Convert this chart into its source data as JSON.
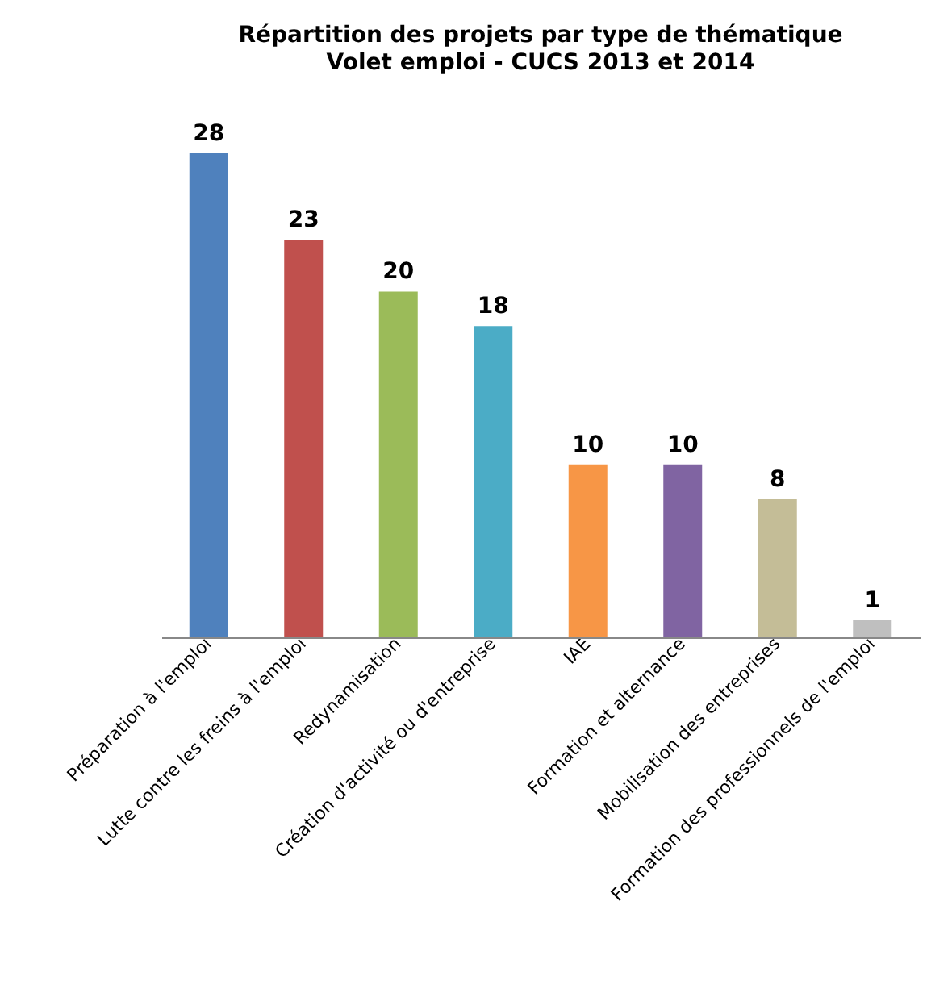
{
  "chart_data": {
    "type": "bar",
    "title": "Répartition des projets par type de thématique",
    "subtitle": "Volet emploi - CUCS 2013 et 2014",
    "categories": [
      "Préparation à l'emploi",
      "Lutte contre les freins à l'emploi",
      "Redynamisation",
      "Création d'activité ou d'entreprise",
      "IAE",
      "Formation et alternance",
      "Mobilisation des entreprises",
      "Formation des professionnels de l'emploi"
    ],
    "values": [
      28,
      23,
      20,
      18,
      10,
      10,
      8,
      1
    ],
    "colors": [
      "#4f81bd",
      "#c0504d",
      "#9bbb59",
      "#4bacc6",
      "#f79646",
      "#8064a2",
      "#c4bd97",
      "#bfbfbf"
    ],
    "data_labels": true
  }
}
